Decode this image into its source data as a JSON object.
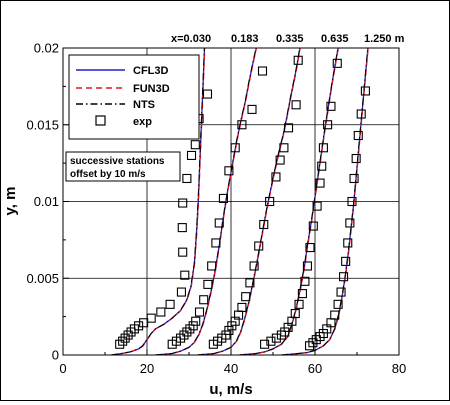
{
  "chart_data": {
    "type": "line",
    "xlabel": "u, m/s",
    "ylabel": "y, m",
    "xlim": [
      0,
      80
    ],
    "ylim": [
      0,
      0.02
    ],
    "x_ticks": [
      "0",
      "20",
      "40",
      "60",
      "80"
    ],
    "y_ticks": [
      "0",
      "0.005",
      "0.01",
      "0.015",
      "0.02"
    ],
    "x_tick_values": [
      0,
      20,
      40,
      60,
      80
    ],
    "y_tick_values": [
      0,
      0.005,
      0.01,
      0.015,
      0.02
    ],
    "grid": true,
    "station_labels": {
      "prefix": "x=",
      "values": [
        "0.030",
        "0.183",
        "0.335",
        "0.635",
        "1.250"
      ],
      "unit": "m"
    },
    "annotation": [
      "successive stations",
      "offset by 10 m/s"
    ],
    "legend": {
      "placement": "top-left",
      "entries": [
        {
          "label": "CFL3D",
          "color": "#1f1fd0",
          "style": "solid"
        },
        {
          "label": "FUN3D",
          "color": "#e0141e",
          "style": "dashed"
        },
        {
          "label": "NTS",
          "color": "#000000",
          "style": "dashdot"
        },
        {
          "label": "exp",
          "color": "#000000",
          "style": "square-marker"
        }
      ]
    },
    "stations": [
      {
        "x_station": "0.030",
        "curve": [
          [
            11.5,
            0
          ],
          [
            14,
            0.0001
          ],
          [
            16,
            0.0002
          ],
          [
            18,
            0.0004
          ],
          [
            19,
            0.0006
          ],
          [
            20,
            0.001
          ],
          [
            21,
            0.0014
          ],
          [
            22,
            0.0017
          ],
          [
            24,
            0.002
          ],
          [
            26,
            0.0024
          ],
          [
            28,
            0.0029
          ],
          [
            29.5,
            0.0036
          ],
          [
            30.5,
            0.0045
          ],
          [
            31.3,
            0.006
          ],
          [
            31.8,
            0.008
          ],
          [
            32.2,
            0.01
          ],
          [
            32.5,
            0.012
          ],
          [
            32.8,
            0.014
          ],
          [
            33.1,
            0.016
          ],
          [
            33.4,
            0.018
          ],
          [
            33.7,
            0.02
          ]
        ],
        "exp": [
          [
            13.5,
            0.0007
          ],
          [
            14.2,
            0.0009
          ],
          [
            14.8,
            0.0011
          ],
          [
            15.5,
            0.0013
          ],
          [
            16.2,
            0.0015
          ],
          [
            17,
            0.0017
          ],
          [
            18,
            0.0019
          ],
          [
            19.2,
            0.0021
          ],
          [
            21,
            0.0024
          ],
          [
            23.3,
            0.0028
          ],
          [
            25.5,
            0.0033
          ],
          [
            28.2,
            0.0041
          ],
          [
            29,
            0.0052
          ],
          [
            28.5,
            0.0067
          ],
          [
            28.4,
            0.0083
          ],
          [
            28.5,
            0.0099
          ],
          [
            29.5,
            0.0115
          ],
          [
            30.6,
            0.013
          ],
          [
            31.5,
            0.0137
          ],
          [
            32.4,
            0.0154
          ],
          [
            34.4,
            0.017
          ]
        ]
      },
      {
        "x_station": "0.183",
        "curve": [
          [
            22,
            0
          ],
          [
            26,
            0.0001
          ],
          [
            28,
            0.00025
          ],
          [
            30,
            0.0005
          ],
          [
            31.2,
            0.0008
          ],
          [
            32.3,
            0.0013
          ],
          [
            33.3,
            0.002
          ],
          [
            34.3,
            0.003
          ],
          [
            35.3,
            0.0042
          ],
          [
            36.3,
            0.0056
          ],
          [
            37.3,
            0.0073
          ],
          [
            38.2,
            0.009
          ],
          [
            39.2,
            0.0107
          ],
          [
            40.4,
            0.0125
          ],
          [
            41.4,
            0.014
          ],
          [
            42.4,
            0.0153
          ],
          [
            43.4,
            0.0165
          ],
          [
            44.3,
            0.0178
          ],
          [
            45.2,
            0.019
          ],
          [
            46,
            0.02
          ]
        ],
        "exp": [
          [
            26,
            0.0007
          ],
          [
            27,
            0.0009
          ],
          [
            28,
            0.0011
          ],
          [
            28.8,
            0.0013
          ],
          [
            29.5,
            0.0015
          ],
          [
            30.2,
            0.0017
          ],
          [
            31,
            0.0019
          ],
          [
            31.6,
            0.0022
          ],
          [
            32.5,
            0.0028
          ],
          [
            33.5,
            0.0036
          ],
          [
            34.5,
            0.0046
          ],
          [
            35.4,
            0.0058
          ],
          [
            36.4,
            0.0073
          ],
          [
            37.2,
            0.0086
          ],
          [
            38.2,
            0.0102
          ],
          [
            39.5,
            0.012
          ],
          [
            41,
            0.0135
          ],
          [
            42.6,
            0.015
          ],
          [
            45,
            0.016
          ],
          [
            47.5,
            0.0185
          ]
        ]
      },
      {
        "x_station": "0.335",
        "curve": [
          [
            32,
            0
          ],
          [
            36,
            0.0001
          ],
          [
            38,
            0.00025
          ],
          [
            40,
            0.0005
          ],
          [
            41.3,
            0.0009
          ],
          [
            42.3,
            0.0015
          ],
          [
            43.3,
            0.0024
          ],
          [
            44.3,
            0.0035
          ],
          [
            45.3,
            0.0048
          ],
          [
            46.3,
            0.0062
          ],
          [
            47.3,
            0.0077
          ],
          [
            48.3,
            0.0092
          ],
          [
            49.4,
            0.0107
          ],
          [
            50.4,
            0.012
          ],
          [
            51.4,
            0.0132
          ],
          [
            52.4,
            0.0143
          ],
          [
            53.3,
            0.0155
          ],
          [
            54.2,
            0.0168
          ],
          [
            55.1,
            0.018
          ],
          [
            55.8,
            0.019
          ],
          [
            56.4,
            0.02
          ]
        ],
        "exp": [
          [
            35.8,
            0.0007
          ],
          [
            36.8,
            0.0009
          ],
          [
            37.8,
            0.0011
          ],
          [
            38.8,
            0.0013
          ],
          [
            39.5,
            0.0016
          ],
          [
            40.2,
            0.0019
          ],
          [
            41,
            0.0022
          ],
          [
            41.8,
            0.0026
          ],
          [
            42.6,
            0.0031
          ],
          [
            43.5,
            0.0038
          ],
          [
            44.5,
            0.0047
          ],
          [
            45.5,
            0.0058
          ],
          [
            46.6,
            0.0071
          ],
          [
            47.8,
            0.0085
          ],
          [
            49.2,
            0.01
          ],
          [
            50.7,
            0.0116
          ],
          [
            51.7,
            0.0127
          ],
          [
            52.6,
            0.0135
          ],
          [
            53.7,
            0.0148
          ],
          [
            55.5,
            0.0163
          ],
          [
            56,
            0.0192
          ]
        ]
      },
      {
        "x_station": "0.635",
        "curve": [
          [
            42,
            0
          ],
          [
            46,
            0.0001
          ],
          [
            48,
            0.0002
          ],
          [
            50,
            0.0004
          ],
          [
            52,
            0.0007
          ],
          [
            53.5,
            0.0012
          ],
          [
            54.5,
            0.002
          ],
          [
            55.5,
            0.003
          ],
          [
            56.5,
            0.0043
          ],
          [
            57.5,
            0.0058
          ],
          [
            58.3,
            0.0073
          ],
          [
            59.2,
            0.0088
          ],
          [
            60,
            0.0103
          ],
          [
            60.8,
            0.0118
          ],
          [
            61.6,
            0.0133
          ],
          [
            62.4,
            0.0148
          ],
          [
            63.2,
            0.0162
          ],
          [
            64,
            0.0176
          ],
          [
            64.8,
            0.0189
          ],
          [
            65.5,
            0.02
          ]
        ],
        "exp": [
          [
            48,
            0.0007
          ],
          [
            49.5,
            0.0009
          ],
          [
            50.8,
            0.0011
          ],
          [
            52,
            0.0013
          ],
          [
            52.8,
            0.0015
          ],
          [
            53.6,
            0.0018
          ],
          [
            54.5,
            0.0022
          ],
          [
            55.3,
            0.0027
          ],
          [
            56.2,
            0.0033
          ],
          [
            57,
            0.004
          ],
          [
            57.6,
            0.0048
          ],
          [
            58.2,
            0.0058
          ],
          [
            58.8,
            0.007
          ],
          [
            59.6,
            0.0084
          ],
          [
            60.5,
            0.0097
          ],
          [
            61.2,
            0.0112
          ],
          [
            61.6,
            0.0123
          ],
          [
            62,
            0.0135
          ],
          [
            63,
            0.015
          ],
          [
            63.8,
            0.0162
          ],
          [
            65.3,
            0.019
          ]
        ]
      },
      {
        "x_station": "1.250",
        "curve": [
          [
            52,
            0
          ],
          [
            56,
            0.0001
          ],
          [
            58,
            0.00015
          ],
          [
            60,
            0.0003
          ],
          [
            62,
            0.0006
          ],
          [
            63.5,
            0.001
          ],
          [
            64.7,
            0.0017
          ],
          [
            65.7,
            0.0027
          ],
          [
            66.5,
            0.0039
          ],
          [
            67.3,
            0.0053
          ],
          [
            68,
            0.0068
          ],
          [
            68.6,
            0.0083
          ],
          [
            69.2,
            0.0098
          ],
          [
            69.7,
            0.0113
          ],
          [
            70.2,
            0.0128
          ],
          [
            70.7,
            0.0143
          ],
          [
            71.2,
            0.0158
          ],
          [
            71.7,
            0.0173
          ],
          [
            72.2,
            0.0188
          ],
          [
            72.6,
            0.02
          ]
        ],
        "exp": [
          [
            58.7,
            0.0006
          ],
          [
            59.5,
            0.0008
          ],
          [
            60.3,
            0.001
          ],
          [
            61.2,
            0.0012
          ],
          [
            62,
            0.0014
          ],
          [
            62.8,
            0.0017
          ],
          [
            63.8,
            0.0021
          ],
          [
            64.7,
            0.0026
          ],
          [
            65.5,
            0.0033
          ],
          [
            66.2,
            0.0041
          ],
          [
            66.8,
            0.0051
          ],
          [
            67.3,
            0.0061
          ],
          [
            67.8,
            0.0073
          ],
          [
            68.3,
            0.0086
          ],
          [
            68.8,
            0.01
          ],
          [
            69.3,
            0.0115
          ],
          [
            69.8,
            0.0128
          ],
          [
            70.3,
            0.0143
          ],
          [
            71,
            0.0157
          ],
          [
            72,
            0.0172
          ]
        ]
      }
    ]
  }
}
